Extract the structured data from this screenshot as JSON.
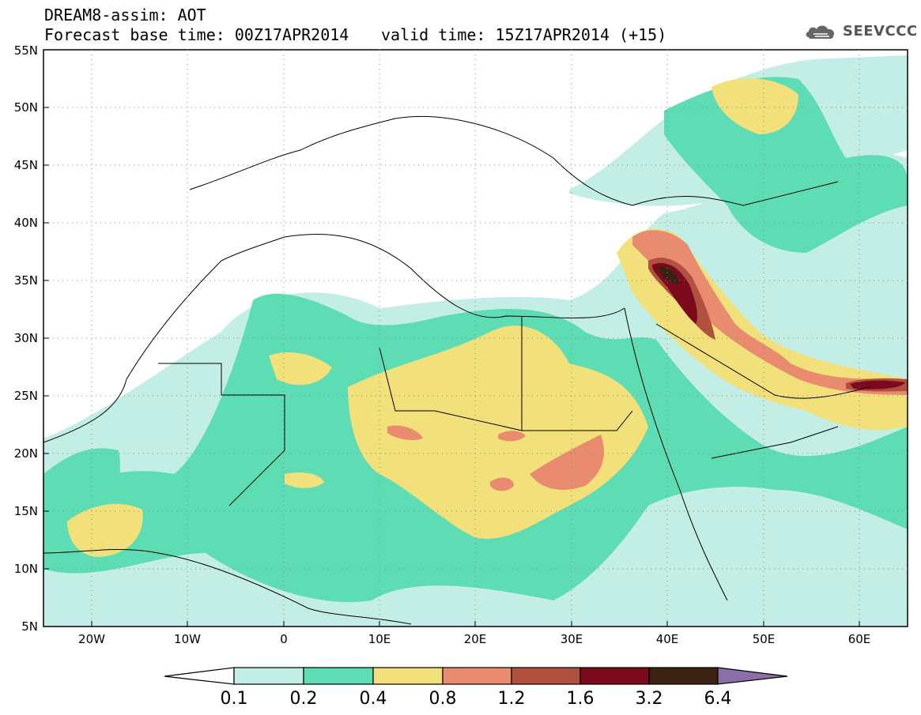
{
  "title": {
    "line1": "DREAM8-assim: AOT",
    "line2": "Forecast base time: 00Z17APR2014",
    "valid": "valid time: 15Z17APR2014 (+15)"
  },
  "logo": {
    "icon": "cloud-icon",
    "text": "SEEVCCC"
  },
  "axes": {
    "lat_labels": [
      "55N",
      "50N",
      "45N",
      "40N",
      "35N",
      "30N",
      "25N",
      "20N",
      "15N",
      "10N",
      "5N"
    ],
    "lon_labels": [
      "20W",
      "10W",
      "0",
      "10E",
      "20E",
      "30E",
      "40E",
      "50E",
      "60E"
    ]
  },
  "colorbar": {
    "labels": [
      "0.1",
      "0.2",
      "0.4",
      "0.8",
      "1.2",
      "1.6",
      "3.2",
      "6.4"
    ],
    "colors": [
      "#ffffff",
      "#c3eee5",
      "#5edcb4",
      "#f2e07a",
      "#e98b6e",
      "#b0503f",
      "#7c0a1f",
      "#3a2212",
      "#8a6fa8"
    ]
  }
}
